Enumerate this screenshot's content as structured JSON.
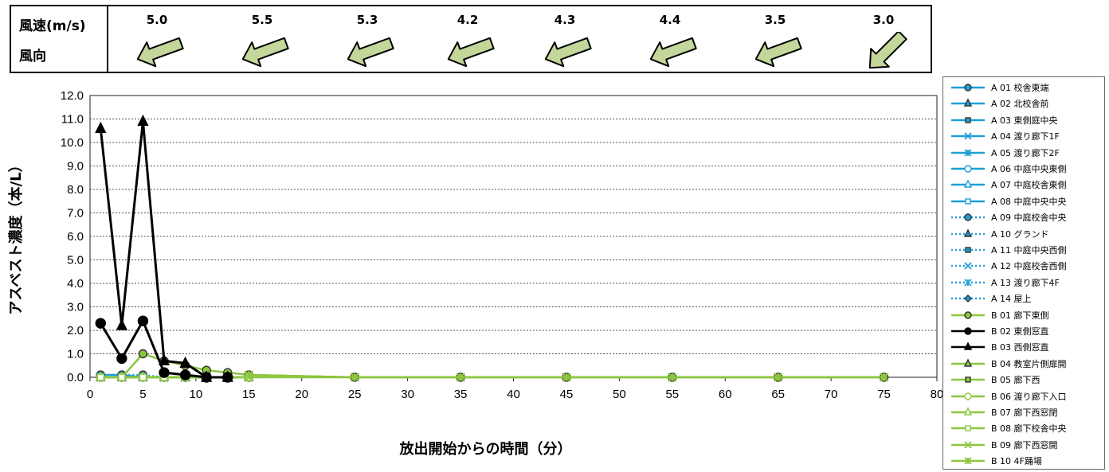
{
  "wind": {
    "speed_label": "風速(m/s)",
    "direction_label": "風向",
    "speeds": [
      "5.0",
      "5.5",
      "5.3",
      "4.2",
      "4.3",
      "4.4",
      "3.5",
      "3.0"
    ],
    "directions": [
      "down-left",
      "down-left",
      "down-left",
      "down-left",
      "down-left",
      "down-left",
      "down-left",
      "down-left-steep"
    ],
    "arrow_color": "#c4d79b"
  },
  "chart_data": {
    "type": "line",
    "xlabel": "放出開始からの時間（分）",
    "ylabel": "アスベスト濃度（本/L）",
    "xlim": [
      0,
      80
    ],
    "ylim": [
      0,
      12
    ],
    "xticks": [
      "0",
      "5",
      "10",
      "15",
      "20",
      "25",
      "30",
      "35",
      "40",
      "45",
      "50",
      "55",
      "60",
      "65",
      "70",
      "75",
      "80"
    ],
    "yticks": [
      "0.0",
      "1.0",
      "2.0",
      "3.0",
      "4.0",
      "5.0",
      "6.0",
      "7.0",
      "8.0",
      "9.0",
      "10.0",
      "11.0",
      "12.0"
    ],
    "grid": "horizontal dotted",
    "legend_position": "right",
    "series": [
      {
        "name": "A 01 校舎東端",
        "color": "#1f9fd6",
        "dash": "solid",
        "marker": "circle",
        "x": [
          1,
          3,
          5,
          7,
          9,
          11,
          13,
          15
        ],
        "y": [
          0.1,
          0.1,
          0,
          0,
          0,
          0,
          0,
          0
        ]
      },
      {
        "name": "A 02 北校舎前",
        "color": "#1f9fd6",
        "dash": "solid",
        "marker": "triangle",
        "x": [
          1,
          3,
          5,
          7,
          9,
          11,
          13,
          15
        ],
        "y": [
          0,
          0,
          0,
          0,
          0,
          0,
          0,
          0
        ]
      },
      {
        "name": "A 03 東側庭中央",
        "color": "#1f9fd6",
        "dash": "solid",
        "marker": "square",
        "x": [
          1,
          3,
          5,
          7,
          9,
          11,
          13,
          15
        ],
        "y": [
          0,
          0,
          0,
          0,
          0,
          0,
          0,
          0
        ]
      },
      {
        "name": "A 04 渡り廊下1F",
        "color": "#1f9fd6",
        "dash": "solid",
        "marker": "x",
        "x": [
          1,
          3,
          5,
          7,
          9,
          11,
          13,
          15
        ],
        "y": [
          0,
          0,
          0,
          0,
          0,
          0,
          0,
          0
        ]
      },
      {
        "name": "A 05 渡り廊下2F",
        "color": "#1f9fd6",
        "dash": "solid",
        "marker": "star",
        "x": [
          1,
          3,
          5,
          7,
          9,
          11,
          13,
          15
        ],
        "y": [
          0,
          0,
          0,
          0,
          0,
          0,
          0,
          0
        ]
      },
      {
        "name": "A 06 中庭中央東側",
        "color": "#1f9fd6",
        "dash": "solid",
        "marker": "circle-open",
        "x": [
          1,
          3,
          5,
          7,
          9,
          11,
          13,
          15
        ],
        "y": [
          0,
          0,
          0,
          0,
          0,
          0,
          0,
          0
        ]
      },
      {
        "name": "A 07 中庭校舎東側",
        "color": "#1f9fd6",
        "dash": "solid",
        "marker": "triangle-open",
        "x": [
          1,
          3,
          5,
          7,
          9,
          11,
          13,
          15
        ],
        "y": [
          0,
          0,
          0,
          0,
          0,
          0,
          0,
          0
        ]
      },
      {
        "name": "A 08 中庭中央中央",
        "color": "#1f9fd6",
        "dash": "solid",
        "marker": "square-open",
        "x": [
          1,
          3,
          5,
          7,
          9,
          11,
          13,
          15
        ],
        "y": [
          0,
          0,
          0,
          0,
          0,
          0,
          0,
          0
        ]
      },
      {
        "name": "A 09 中庭校舎中央",
        "color": "#1f9fd6",
        "dash": "dotted",
        "marker": "circle",
        "x": [
          1,
          3,
          5,
          7,
          9,
          11,
          13,
          15
        ],
        "y": [
          0.1,
          0.1,
          0.1,
          0,
          0,
          0,
          0,
          0
        ]
      },
      {
        "name": "A 10 グランド",
        "color": "#1f9fd6",
        "dash": "dotted",
        "marker": "triangle",
        "x": [
          1,
          3,
          5,
          7,
          9,
          11,
          13,
          15
        ],
        "y": [
          0,
          0,
          0,
          0,
          0,
          0,
          0,
          0
        ]
      },
      {
        "name": "A 11 中庭中央西側",
        "color": "#1f9fd6",
        "dash": "dotted",
        "marker": "square",
        "x": [
          1,
          3,
          5,
          7,
          9,
          11,
          13,
          15
        ],
        "y": [
          0,
          0,
          0,
          0,
          0,
          0,
          0,
          0
        ]
      },
      {
        "name": "A 12 中庭校舎西側",
        "color": "#1f9fd6",
        "dash": "dotted",
        "marker": "x",
        "x": [
          1,
          3,
          5,
          7,
          9,
          11,
          13,
          15
        ],
        "y": [
          0,
          0,
          0,
          0,
          0,
          0,
          0,
          0
        ]
      },
      {
        "name": "A 13 渡り廊下4F",
        "color": "#1f9fd6",
        "dash": "dotted",
        "marker": "star",
        "x": [
          1,
          3,
          5,
          7,
          9,
          11,
          13,
          15
        ],
        "y": [
          0,
          0,
          0,
          0,
          0,
          0,
          0,
          0
        ]
      },
      {
        "name": "A 14 屋上",
        "color": "#1f9fd6",
        "dash": "dotted",
        "marker": "diamond",
        "x": [
          1,
          3,
          5,
          7,
          9,
          11,
          13,
          15
        ],
        "y": [
          0,
          0,
          0,
          0,
          0,
          0,
          0,
          0
        ]
      },
      {
        "name": "B 01 廊下東側",
        "color": "#8cc63f",
        "dash": "solid",
        "marker": "circle",
        "x": [
          1,
          3,
          5,
          7,
          9,
          11,
          13,
          15,
          25,
          35,
          45,
          55,
          65,
          75
        ],
        "y": [
          0,
          0,
          1.0,
          0.7,
          0.5,
          0.3,
          0.2,
          0.1,
          0,
          0,
          0,
          0,
          0,
          0
        ]
      },
      {
        "name": "B 02 東側窓直",
        "color": "#000000",
        "dash": "solid",
        "marker": "circle",
        "x": [
          1,
          3,
          5,
          7,
          9,
          11,
          13
        ],
        "y": [
          2.3,
          0.8,
          2.4,
          0.2,
          0.1,
          0,
          0
        ]
      },
      {
        "name": "B 03 西側窓直",
        "color": "#000000",
        "dash": "solid",
        "marker": "triangle",
        "x": [
          1,
          3,
          5,
          7,
          9,
          11,
          13
        ],
        "y": [
          10.6,
          2.2,
          10.9,
          0.7,
          0.6,
          0,
          0
        ]
      },
      {
        "name": "B 04 教室片側扉開",
        "color": "#8cc63f",
        "dash": "solid",
        "marker": "triangle",
        "x": [
          1,
          3,
          5,
          7,
          9,
          11,
          13,
          15
        ],
        "y": [
          0,
          0,
          0,
          0,
          0,
          0,
          0,
          0
        ]
      },
      {
        "name": "B 05 廊下西",
        "color": "#8cc63f",
        "dash": "solid",
        "marker": "square",
        "x": [
          1,
          3,
          5,
          7,
          9,
          11,
          13,
          15
        ],
        "y": [
          0,
          0,
          0,
          0,
          0,
          0,
          0,
          0
        ]
      },
      {
        "name": "B 06 渡り廊下入口",
        "color": "#8cc63f",
        "dash": "solid",
        "marker": "circle-open",
        "x": [
          1,
          3,
          5,
          7,
          9,
          11,
          13,
          15
        ],
        "y": [
          0,
          0,
          0,
          0,
          0,
          0,
          0,
          0
        ]
      },
      {
        "name": "B 07 廊下西窓閉",
        "color": "#8cc63f",
        "dash": "solid",
        "marker": "triangle-open",
        "x": [
          1,
          3,
          5,
          7,
          9,
          11,
          13,
          15
        ],
        "y": [
          0,
          0,
          0,
          0,
          0,
          0,
          0,
          0
        ]
      },
      {
        "name": "B 08 廊下校舎中央",
        "color": "#8cc63f",
        "dash": "solid",
        "marker": "square-open",
        "x": [
          1,
          3,
          5,
          7,
          9,
          11,
          13,
          15
        ],
        "y": [
          0,
          0,
          0,
          0,
          0,
          0,
          0,
          0
        ]
      },
      {
        "name": "B 09 廊下西窓開",
        "color": "#8cc63f",
        "dash": "solid",
        "marker": "x",
        "x": [
          15,
          25,
          35,
          45,
          55,
          65,
          75
        ],
        "y": [
          0,
          0,
          0,
          0,
          0,
          0,
          0
        ]
      },
      {
        "name": "B 10 4F踊場",
        "color": "#8cc63f",
        "dash": "solid",
        "marker": "star",
        "x": [
          15,
          25,
          35,
          45,
          55,
          65,
          75
        ],
        "y": [
          0.1,
          0,
          0,
          0,
          0,
          0,
          0
        ]
      }
    ]
  }
}
